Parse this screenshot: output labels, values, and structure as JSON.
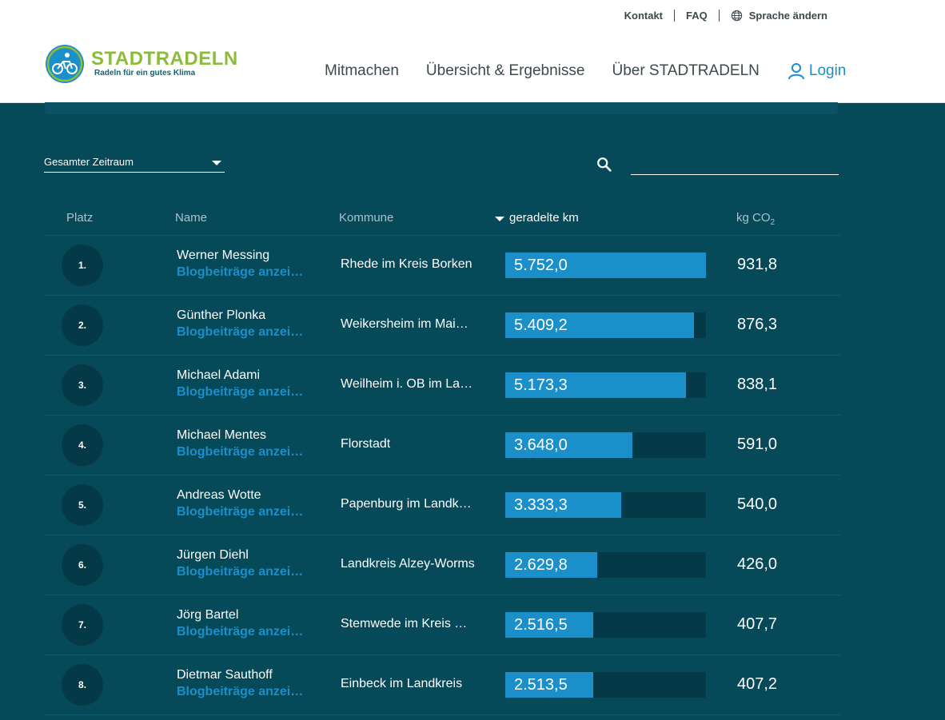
{
  "topbar": {
    "contact": "Kontakt",
    "faq": "FAQ",
    "language": "Sprache ändern"
  },
  "logo": {
    "title": "STADTRADELN",
    "subtitle": "Radeln für ein gutes Klima"
  },
  "nav": {
    "items": [
      "Mitmachen",
      "Übersicht & Ergebnisse",
      "Über STADTRADELN"
    ],
    "login": "Login"
  },
  "filter": {
    "period": "Gesamter Zeitraum",
    "search_value": ""
  },
  "table": {
    "headers": {
      "platz": "Platz",
      "name": "Name",
      "kommune": "Kommune",
      "km": "geradelte km",
      "co2": "kg CO",
      "co2_sub": "2"
    },
    "max_km": 5752.0,
    "rows": [
      {
        "rank": "1.",
        "name": "Werner Messing",
        "blog": "Blogbeiträge anzeigen",
        "kommune": "Rhede im Kreis Borken",
        "km_value": 5752.0,
        "km": "5.752,0",
        "co2": "931,8"
      },
      {
        "rank": "2.",
        "name": "Günther Plonka",
        "blog": "Blogbeiträge anzeigen",
        "kommune": "Weikersheim im Main-Tauber-Kreis",
        "km_value": 5409.2,
        "km": "5.409,2",
        "co2": "876,3"
      },
      {
        "rank": "3.",
        "name": "Michael Adami",
        "blog": "Blogbeiträge anzeigen",
        "kommune": "Weilheim i. OB im Landkreis",
        "km_value": 5173.3,
        "km": "5.173,3",
        "co2": "838,1"
      },
      {
        "rank": "4.",
        "name": "Michael Mentes",
        "blog": "Blogbeiträge anzeigen",
        "kommune": "Florstadt",
        "km_value": 3648.0,
        "km": "3.648,0",
        "co2": "591,0"
      },
      {
        "rank": "5.",
        "name": "Andreas Wotte",
        "blog": "Blogbeiträge anzeigen",
        "kommune": "Papenburg im Landkreis",
        "km_value": 3333.3,
        "km": "3.333,3",
        "co2": "540,0"
      },
      {
        "rank": "6.",
        "name": "Jürgen Diehl",
        "blog": "Blogbeiträge anzeigen",
        "kommune": "Landkreis Alzey-Worms",
        "km_value": 2629.8,
        "km": "2.629,8",
        "co2": "426,0"
      },
      {
        "rank": "7.",
        "name": "Jörg Bartel",
        "blog": "Blogbeiträge anzeigen",
        "kommune": "Stemwede im Kreis Minden",
        "km_value": 2516.5,
        "km": "2.516,5",
        "co2": "407,7"
      },
      {
        "rank": "8.",
        "name": "Dietmar Sauthoff",
        "blog": "Blogbeiträge anzeigen",
        "kommune": "Einbeck im Landkreis",
        "km_value": 2513.5,
        "km": "2.513,5",
        "co2": "407,2"
      }
    ]
  },
  "colors": {
    "background": "#064958",
    "accent": "#1a8fc9",
    "logo_green": "#8dbb3a",
    "bar_track": "#043a47"
  }
}
